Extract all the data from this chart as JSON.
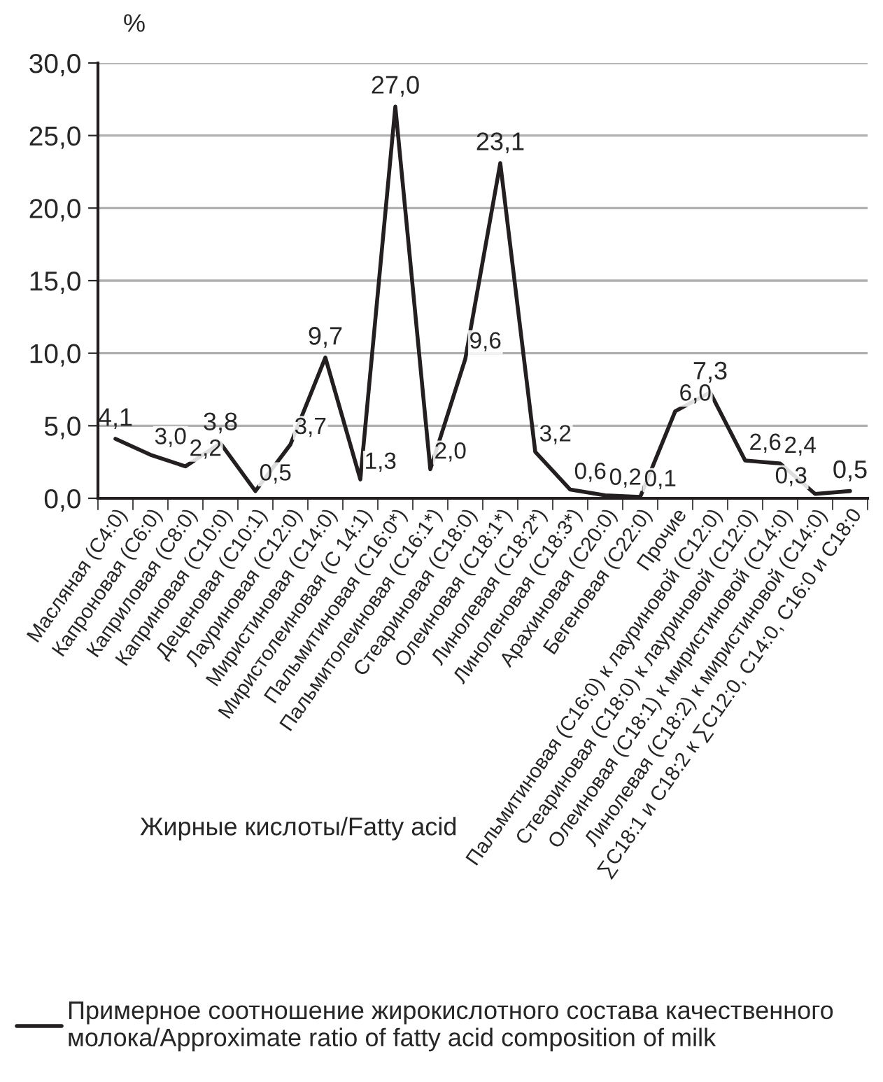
{
  "chart_data": {
    "type": "line",
    "ylabel": "%",
    "xlabel": "Жирные кислоты/Fatty acid",
    "categories": [
      "Масляная (C4:0)",
      "Капроновая (C6:0)",
      "Каприловая (C8:0)",
      "Каприновая (C10:0)",
      "Деценовая (C10:1)",
      "Лауриновая (C12:0)",
      "Миристиновая (C14:0)",
      "Миристолеиновая (C 14:1)",
      "Пальмитиновая (C16:0*)",
      "Пальмитолеиновая (C16:1*)",
      "Стеариновая (C18:0)",
      "Олеиновая (C18:1*)",
      "Линолевая (C18:2*)",
      "Линоленовая (C18:3*)",
      "Арахиновая (C20:0)",
      "Бегеновая (C22:0)",
      "Прочие",
      "Пальмитиновая (C16:0) к лауриновой (C12:0)",
      "Стеариновая (C18:0) к лауриновой (C12:0)",
      "Олеиновая (C18:1) к миристиновой (C14:0)",
      "Линолевая (C18:2) к миристиновой (C14:0)",
      "∑C18:1 и C18:2 к ∑C12:0, C14:0, C16:0 и C18:0"
    ],
    "series": [
      {
        "name": "Примерное соотношение жирокислотного состава качественного молока/Approximate ratio of fatty acid composition of milk",
        "color": "#231f20",
        "values": [
          4.1,
          3.0,
          2.2,
          3.8,
          0.5,
          3.7,
          9.7,
          1.3,
          27.0,
          2.0,
          9.6,
          23.1,
          3.2,
          0.6,
          0.2,
          0.1,
          6.0,
          7.3,
          2.6,
          2.4,
          0.3,
          0.5
        ],
        "value_labels": [
          "4,1",
          "3,0",
          "2,2",
          "3,8",
          "0,5",
          "3,7",
          "9,7",
          "1,3",
          "27,0",
          "2,0",
          "9,6",
          "23,1",
          "3,2",
          "0,6",
          "0,2",
          "0,1",
          "6,0",
          "7,3",
          "2,6",
          "2,4",
          "0,3",
          "0,5"
        ]
      }
    ],
    "ylim": [
      0,
      30
    ],
    "yticks": [
      {
        "value": 0,
        "label": "0,0"
      },
      {
        "value": 5,
        "label": "5,0"
      },
      {
        "value": 10,
        "label": "10,0"
      },
      {
        "value": 15,
        "label": "15,0"
      },
      {
        "value": 20,
        "label": "20,0"
      },
      {
        "value": 25,
        "label": "25,0"
      },
      {
        "value": 30,
        "label": "30,0"
      }
    ],
    "grid": "y",
    "legend": "bottom",
    "marker": "none",
    "line_style": "solid"
  }
}
